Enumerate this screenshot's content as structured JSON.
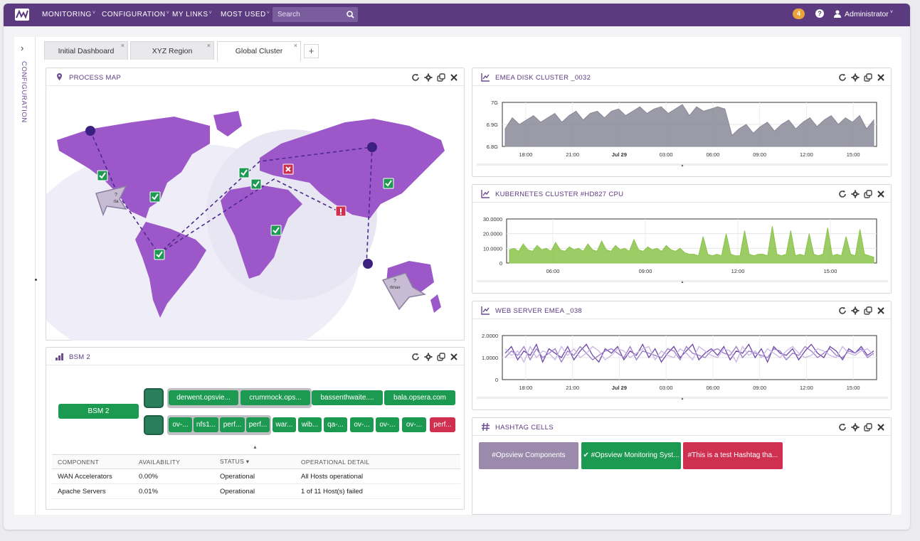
{
  "nav": {
    "items": [
      {
        "label": "MONITORING"
      },
      {
        "label": "CONFIGURATION"
      },
      {
        "label": "MY LINKS"
      },
      {
        "label": "MOST USED"
      }
    ],
    "caret": "˅",
    "search_placeholder": "Search",
    "search_icon": "search-icon",
    "notification_count": "4",
    "help_label": "?",
    "user_name": "Administrator"
  },
  "sidebar": {
    "toggle": "›",
    "label": "CONFIGURATION"
  },
  "tabs": [
    {
      "label": "Initial Dashboard",
      "active": false
    },
    {
      "label": "XYZ Region",
      "active": false
    },
    {
      "label": "Global Cluster",
      "active": true
    }
  ],
  "tab_close": "×",
  "add_tab": "+",
  "panels": {
    "process_map": {
      "title": "PROCESS MAP",
      "markers": [
        {
          "label": "?",
          "sub": "rta"
        },
        {
          "label": "?",
          "sub": "rtmax"
        }
      ]
    },
    "bsm": {
      "title": "BSM 2",
      "root": "BSM 2",
      "row1": [
        "derwent.opsvie...",
        "crummock.ops...",
        "bassenthwaite....",
        "bala.opsera.com"
      ],
      "row2": [
        "ov-...",
        "nfs1...",
        "perf...",
        "perf...",
        "war...",
        "wib...",
        "qa-...",
        "ov-...",
        "ov-...",
        "ov-...",
        "perf..."
      ],
      "row2_status": [
        "ok",
        "ok",
        "ok",
        "ok",
        "ok",
        "ok",
        "ok",
        "ok",
        "ok",
        "ok",
        "critical"
      ],
      "table": {
        "headers": [
          "COMPONENT",
          "AVAILABILITY",
          "STATUS ▾",
          "OPERATIONAL DETAIL"
        ],
        "rows": [
          [
            "WAN Accelerators",
            "0.00%",
            "Operational",
            "All Hosts operational"
          ],
          [
            "Apache Servers",
            "0.01%",
            "Operational",
            "1 of 11 Host(s) failed"
          ]
        ]
      }
    },
    "disk": {
      "title": "EMEA DISK CLUSTER _0032"
    },
    "kube": {
      "title": "KUBERNETES CLUSTER #HD827 CPU"
    },
    "web": {
      "title": "WEB SERVER EMEA _038"
    },
    "hashtag": {
      "title": "HASHTAG CELLS",
      "cells": [
        {
          "label": "#Opsview Components",
          "color": "#9b8aab"
        },
        {
          "label": "✔ #Opsview Monitoring Syst...",
          "color": "#1d9a52"
        },
        {
          "label": "#This is a test Hashtag tha...",
          "color": "#d03050"
        }
      ]
    }
  },
  "chart_data": [
    {
      "type": "area",
      "title": "EMEA DISK CLUSTER _0032",
      "x_tick_labels": [
        "18:00",
        "21:00",
        "Jul 29",
        "03:00",
        "06:00",
        "09:00",
        "12:00",
        "15:00"
      ],
      "y_tick_labels": [
        "7G",
        "6.9G",
        "6.8G"
      ],
      "ylim": [
        6.8,
        7.0
      ],
      "color": "#8a8898",
      "series": [
        {
          "values": [
            6.88,
            6.93,
            6.9,
            6.92,
            6.94,
            6.91,
            6.93,
            6.95,
            6.91,
            6.94,
            6.96,
            6.92,
            6.95,
            6.96,
            6.93,
            6.96,
            6.97,
            6.94,
            6.96,
            6.98,
            6.95,
            6.97,
            6.98,
            6.95,
            6.97,
            6.99,
            6.94,
            6.98,
            6.96,
            6.97,
            6.98,
            6.97,
            6.85,
            6.88,
            6.9,
            6.86,
            6.89,
            6.91,
            6.87,
            6.9,
            6.92,
            6.88,
            6.91,
            6.93,
            6.89,
            6.92,
            6.94,
            6.9,
            6.93,
            6.91,
            6.94,
            6.88,
            6.92
          ]
        }
      ]
    },
    {
      "type": "area",
      "title": "KUBERNETES CLUSTER #HD827 CPU",
      "x_tick_labels": [
        "06:00",
        "09:00",
        "12:00",
        "15:00"
      ],
      "y_tick_labels": [
        "30.0000",
        "20.0000",
        "10.0000",
        "0"
      ],
      "ylim": [
        0,
        30
      ],
      "color": "#8bc34a",
      "series": [
        {
          "values": [
            9,
            10,
            8,
            13,
            9,
            8,
            12,
            9,
            10,
            8,
            14,
            9,
            8,
            11,
            9,
            10,
            8,
            13,
            9,
            8,
            15,
            9,
            8,
            12,
            9,
            10,
            8,
            16,
            9,
            8,
            11,
            9,
            10,
            8,
            12,
            9,
            8,
            10,
            7,
            6,
            6,
            5,
            18,
            6,
            5,
            6,
            5,
            20,
            6,
            5,
            5,
            22,
            6,
            5,
            6,
            6,
            5,
            25,
            6,
            5,
            6,
            22,
            5,
            6,
            5,
            20,
            6,
            5,
            6,
            24,
            5,
            6,
            5,
            18,
            6,
            5,
            23,
            6,
            5,
            4
          ]
        }
      ]
    },
    {
      "type": "line",
      "title": "WEB SERVER EMEA _038",
      "x_tick_labels": [
        "18:00",
        "21:00",
        "Jul 29",
        "03:00",
        "06:00",
        "09:00",
        "12:00",
        "15:00"
      ],
      "y_tick_labels": [
        "2.0000",
        "1.0000",
        "0"
      ],
      "ylim": [
        0,
        2
      ],
      "colors": [
        "#6b45a8",
        "#9a7bc8",
        "#c9b6e4"
      ],
      "series": [
        {
          "values": [
            1.2,
            1.5,
            0.9,
            1.3,
            1.1,
            1.6,
            0.8,
            1.4,
            1.2,
            1.0,
            1.5,
            0.9,
            1.3,
            1.6,
            1.1,
            0.8,
            1.4,
            1.2,
            1.5,
            0.9,
            1.3,
            1.1,
            1.6,
            1.0,
            1.4,
            0.8,
            1.2,
            1.5,
            1.0,
            1.3,
            1.6,
            0.9,
            1.2,
            1.4,
            1.1,
            1.5,
            0.9,
            1.3,
            1.2,
            1.6,
            1.0,
            1.4,
            0.8,
            1.5,
            1.2,
            1.1,
            1.4,
            0.9,
            1.3,
            1.6,
            1.2,
            1.0,
            1.5,
            1.3,
            0.9,
            1.4,
            1.2,
            1.5,
            1.1,
            1.3
          ]
        },
        {
          "values": [
            1.0,
            1.3,
            1.1,
            1.5,
            0.9,
            1.4,
            1.0,
            1.2,
            1.4,
            0.8,
            1.3,
            1.1,
            1.5,
            1.2,
            0.9,
            1.1,
            1.3,
            1.4,
            1.2,
            1.0,
            1.5,
            0.9,
            1.3,
            1.2,
            1.1,
            1.0,
            1.4,
            1.3,
            0.9,
            1.5,
            1.2,
            1.1,
            1.0,
            1.3,
            1.4,
            1.2,
            1.1,
            1.5,
            1.0,
            1.3,
            1.2,
            1.1,
            1.0,
            1.4,
            1.3,
            0.9,
            1.2,
            1.1,
            1.5,
            1.3,
            1.0,
            1.2,
            1.4,
            1.1,
            1.0,
            1.3,
            1.2,
            1.4,
            1.0,
            1.2
          ]
        },
        {
          "values": [
            1.4,
            1.1,
            1.3,
            0.8,
            1.5,
            1.0,
            1.3,
            1.2,
            0.9,
            1.5,
            1.1,
            1.4,
            1.0,
            1.2,
            1.5,
            1.3,
            0.9,
            1.1,
            1.4,
            1.3,
            1.0,
            1.2,
            1.4,
            1.5,
            0.9,
            1.3,
            1.1,
            1.0,
            1.4,
            1.2,
            0.9,
            1.5,
            1.3,
            1.1,
            1.0,
            1.4,
            1.3,
            0.8,
            1.5,
            1.1,
            1.3,
            1.0,
            1.4,
            1.2,
            1.0,
            1.3,
            1.5,
            1.2,
            1.0,
            1.1,
            1.4,
            1.3,
            1.1,
            1.0,
            1.5,
            1.2,
            1.1,
            1.3,
            1.4,
            1.1
          ]
        }
      ]
    }
  ]
}
